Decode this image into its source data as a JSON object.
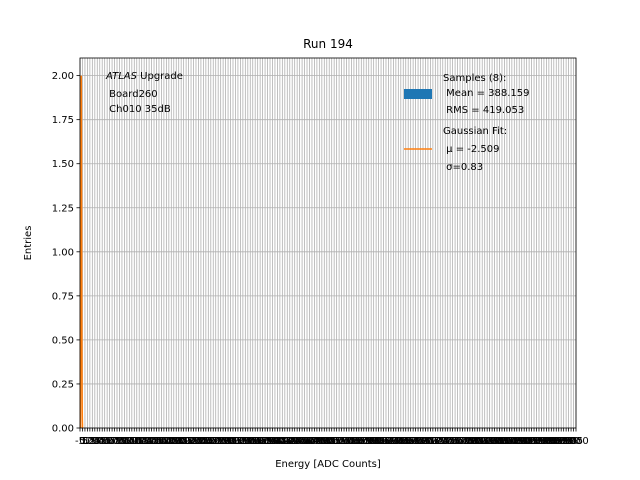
{
  "chart_data": {
    "type": "bar",
    "title": "Run 194",
    "xlabel": "Energy [ADC Counts]",
    "ylabel": "Entries",
    "ylim": [
      0,
      2.1
    ],
    "yticks": [
      0.0,
      0.25,
      0.5,
      0.75,
      1.0,
      1.25,
      1.5,
      1.75,
      2.0
    ],
    "yticklabels": [
      "0.00",
      "0.25",
      "0.50",
      "0.75",
      "1.00",
      "1.25",
      "1.50",
      "1.75",
      "2.00"
    ],
    "xlim": [
      -5,
      1000
    ],
    "xtick_step": 5,
    "grid": true,
    "annotation": {
      "experiment": "ATLAS",
      "experiment_suffix": " Upgrade",
      "board": " Board260",
      "channel": " Ch010 35dB"
    },
    "series": [
      {
        "name": "Samples (8):",
        "kind": "histogram",
        "color": "#1f77b4",
        "legend_lines": [
          " Mean = 388.159",
          " RMS = 419.053"
        ]
      },
      {
        "name": "Gaussian Fit:",
        "kind": "line",
        "color": "#ff7f0e",
        "legend_lines": [
          " μ = -2.509",
          " σ=0.83"
        ],
        "mu": -2.509,
        "sigma": 0.83,
        "amplitude": 2.0
      }
    ],
    "legend_position": "top-right"
  }
}
